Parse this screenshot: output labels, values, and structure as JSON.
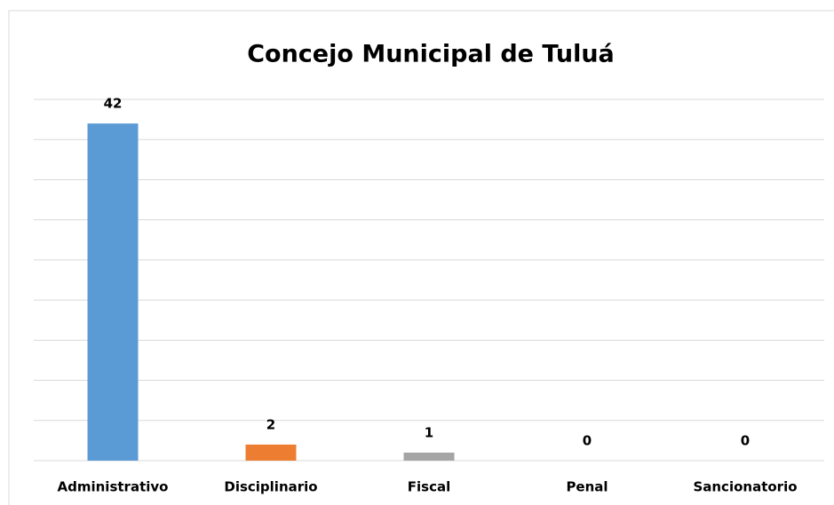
{
  "chart_data": {
    "type": "bar",
    "title": "Concejo Municipal de Tuluá",
    "categories": [
      "Administrativo",
      "Disciplinario",
      "Fiscal",
      "Penal",
      "Sancionatorio"
    ],
    "values": [
      42,
      2,
      1,
      0,
      0
    ],
    "colors": [
      "#5b9bd5",
      "#ed7d31",
      "#a5a5a5",
      "#ffc000",
      "#4472c4"
    ],
    "ylim": [
      0,
      45
    ],
    "yticks": [
      0,
      5,
      10,
      15,
      20,
      25,
      30,
      35,
      40,
      45
    ],
    "grid": true
  }
}
